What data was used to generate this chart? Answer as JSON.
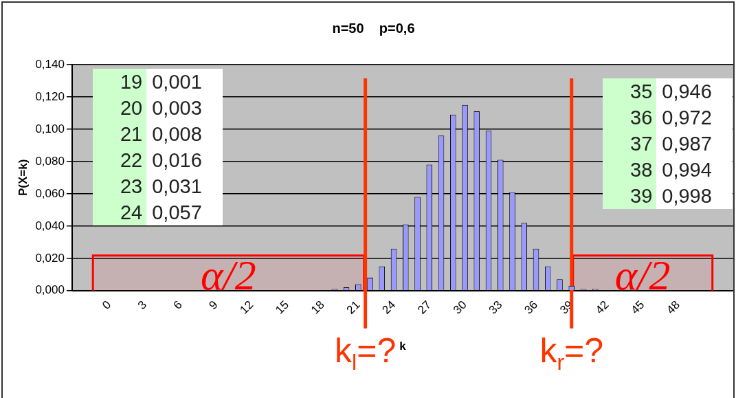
{
  "chart_data": {
    "type": "bar",
    "title": "n=50    p=0,6",
    "xlabel": "k",
    "ylabel": "P(X=k)",
    "x": [
      0,
      1,
      2,
      3,
      4,
      5,
      6,
      7,
      8,
      9,
      10,
      11,
      12,
      13,
      14,
      15,
      16,
      17,
      18,
      19,
      20,
      21,
      22,
      23,
      24,
      25,
      26,
      27,
      28,
      29,
      30,
      31,
      32,
      33,
      34,
      35,
      36,
      37,
      38,
      39,
      40,
      41,
      42,
      43,
      44,
      45,
      46,
      47,
      48,
      49,
      50
    ],
    "values": [
      0,
      0,
      0,
      0,
      0,
      0,
      0,
      0,
      0,
      0,
      0,
      0,
      0,
      0,
      0,
      0,
      0,
      0,
      0,
      0.001,
      0.002,
      0.004,
      0.008,
      0.015,
      0.026,
      0.041,
      0.058,
      0.078,
      0.096,
      0.109,
      0.115,
      0.111,
      0.099,
      0.081,
      0.061,
      0.042,
      0.026,
      0.015,
      0.007,
      0.003,
      0.001,
      0.001,
      0,
      0,
      0,
      0,
      0,
      0,
      0,
      0,
      0
    ],
    "color": "#9999ff",
    "xlim": [
      -1.5,
      51
    ],
    "xticks": [
      0,
      3,
      6,
      9,
      12,
      15,
      18,
      21,
      24,
      27,
      30,
      33,
      36,
      39,
      42,
      45,
      48
    ],
    "ylim": [
      0,
      0.14
    ],
    "yticks": [
      {
        "value": 0,
        "label": "0,000"
      },
      {
        "value": 0.02,
        "label": "0,020"
      },
      {
        "value": 0.04,
        "label": "0,040"
      },
      {
        "value": 0.06,
        "label": "0,060"
      },
      {
        "value": 0.08,
        "label": "0,080"
      },
      {
        "value": 0.1,
        "label": "0,100"
      },
      {
        "value": 0.12,
        "label": "0,120"
      },
      {
        "value": 0.14,
        "label": "0,140"
      }
    ],
    "grid": "y",
    "legend": false,
    "ref_lines": [
      {
        "axis": "x",
        "value": 21.6,
        "label": "k$_{l}$=?",
        "color": "#ff3300"
      },
      {
        "axis": "x",
        "value": 39,
        "label": "k$_{r}$=?",
        "color": "#ff3300"
      }
    ],
    "bands": [
      {
        "axis": "x",
        "from": -1.5,
        "to": 21.6,
        "label": "α/2",
        "color": "#ff0000"
      },
      {
        "axis": "x",
        "from": 39,
        "to": 51,
        "label": "α/2",
        "color": "#ff0000"
      }
    ],
    "annotations": [
      "19 0,001",
      "20 0,003",
      "21 0,008",
      "22 0,016",
      "23 0,031",
      "24 0,057",
      "35 0,946",
      "36 0,972",
      "37 0,987",
      "38 0,994",
      "39 0,998"
    ]
  }
}
